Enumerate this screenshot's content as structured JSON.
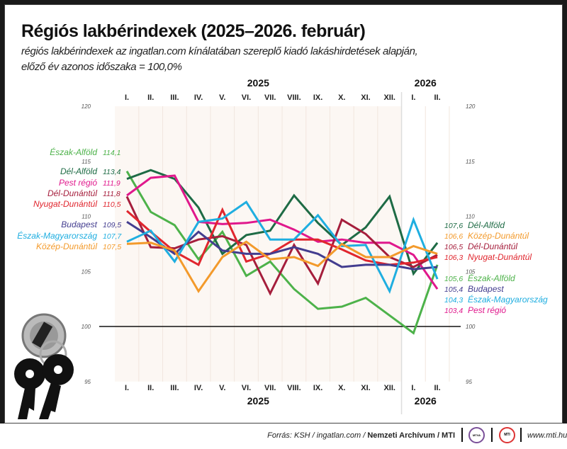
{
  "title": "Régiós lakbérindexek (2025–2026. február)",
  "subtitle_line1": "régiós lakbérindexek az ingatlan.com kínálatában szereplő kiadó lakáshirdetések alapján,",
  "subtitle_line2": "előző év azonos időszaka = 100,0%",
  "footer": {
    "source_prefix": "Forrás: KSH / ingatlan.com / ",
    "source_bold": "Nemzeti Archívum / MTI",
    "logo1": "MTVA",
    "logo2": "MTI",
    "website": "www.mti.hu"
  },
  "chart_data": {
    "type": "line",
    "title": "Régiós lakbérindexek (2025–2026. február)",
    "year_labels": [
      "2025",
      "2026"
    ],
    "categories": [
      "I.",
      "II.",
      "III.",
      "IV.",
      "V.",
      "VI.",
      "VII.",
      "VIII.",
      "IX.",
      "X.",
      "XI.",
      "XII.",
      "I.",
      "II."
    ],
    "category_years": [
      "2025",
      "2025",
      "2025",
      "2025",
      "2025",
      "2025",
      "2025",
      "2025",
      "2025",
      "2025",
      "2025",
      "2025",
      "2026",
      "2026"
    ],
    "ylim": [
      95,
      120
    ],
    "yticks": [
      95,
      100,
      105,
      110,
      115,
      120
    ],
    "reference_line": 100,
    "series": [
      {
        "name": "Észak-Alföld",
        "color": "#4db24a",
        "start_label": "114,1",
        "end_label": "105,6",
        "values": [
          114.1,
          110.4,
          109.2,
          106.1,
          108.6,
          104.6,
          105.9,
          103.4,
          101.6,
          101.8,
          102.6,
          101.0,
          99.4,
          105.6
        ]
      },
      {
        "name": "Dél-Alföld",
        "color": "#1e6b45",
        "start_label": "113,4",
        "end_label": "107,6",
        "values": [
          113.4,
          114.2,
          113.4,
          110.8,
          106.6,
          108.3,
          108.7,
          111.9,
          109.4,
          107.4,
          109.0,
          111.8,
          104.8,
          107.6
        ]
      },
      {
        "name": "Pest régió",
        "color": "#e0188c",
        "start_label": "111,9",
        "end_label": "103,4",
        "values": [
          111.9,
          113.5,
          113.7,
          109.5,
          109.3,
          109.4,
          109.7,
          108.8,
          107.7,
          107.9,
          107.6,
          107.6,
          106.5,
          103.4
        ]
      },
      {
        "name": "Dél-Dunántúl",
        "color": "#a51e3c",
        "start_label": "111,8",
        "end_label": "106,5",
        "values": [
          111.8,
          107.2,
          107.1,
          107.9,
          108.2,
          107.4,
          103.0,
          107.4,
          103.9,
          109.7,
          108.4,
          106.3,
          105.4,
          106.5
        ]
      },
      {
        "name": "Nyugat-Dunántúl",
        "color": "#e0262e",
        "start_label": "110,5",
        "end_label": "106,3",
        "values": [
          110.5,
          108.6,
          106.8,
          105.6,
          110.6,
          105.9,
          106.6,
          107.9,
          107.9,
          107.0,
          106.0,
          105.6,
          105.8,
          106.3
        ]
      },
      {
        "name": "Budapest",
        "color": "#433d8f",
        "start_label": "109,5",
        "end_label": "105,4",
        "values": [
          109.5,
          108.1,
          106.6,
          108.6,
          106.9,
          106.6,
          106.6,
          107.2,
          106.6,
          105.4,
          105.6,
          105.6,
          105.2,
          105.4
        ]
      },
      {
        "name": "Észak-Magyarország",
        "color": "#1faee0",
        "start_label": "107,7",
        "end_label": "104,3",
        "values": [
          107.7,
          108.7,
          105.9,
          109.5,
          109.8,
          111.3,
          107.9,
          107.9,
          110.1,
          107.3,
          107.4,
          103.2,
          109.7,
          104.3
        ]
      },
      {
        "name": "Közép-Dunántúl",
        "color": "#f39a2b",
        "start_label": "107,5",
        "end_label": "106,6",
        "values": [
          107.5,
          107.6,
          106.9,
          103.2,
          106.3,
          107.7,
          106.1,
          106.3,
          105.5,
          107.5,
          106.3,
          106.3,
          107.3,
          106.6
        ]
      }
    ],
    "end_label_order": [
      "Dél-Alföld",
      "Közép-Dunántúl",
      "Dél-Dunántúl",
      "Nyugat-Dunántúl",
      "Észak-Alföld",
      "Budapest",
      "Észak-Magyarország",
      "Pest régió"
    ],
    "grid": true,
    "legend": "direct labels left and right"
  }
}
